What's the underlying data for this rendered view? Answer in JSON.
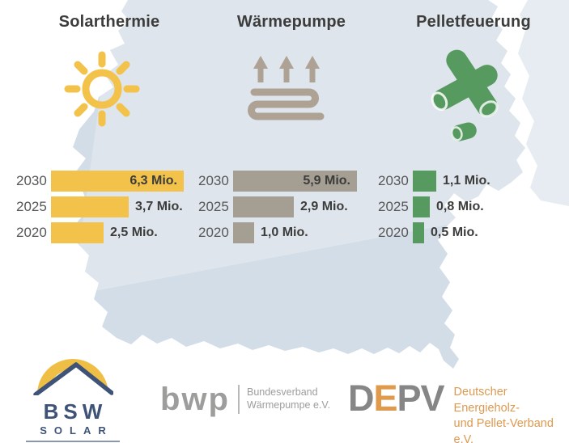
{
  "columns": [
    {
      "label": "Solarthermie",
      "icon": "sun-icon",
      "color": "#F2C24A"
    },
    {
      "label": "Wärmepumpe",
      "icon": "heatpump-icon",
      "color": "#A59E93"
    },
    {
      "label": "Pelletfeuerung",
      "icon": "pellets-icon",
      "color": "#579A60"
    }
  ],
  "chart_data": {
    "type": "bar",
    "orientation": "horizontal",
    "unit": "Mio.",
    "categories": [
      "2030",
      "2025",
      "2020"
    ],
    "series": [
      {
        "name": "Solarthermie",
        "color": "#F2C24A",
        "values": [
          6.3,
          3.7,
          2.5
        ],
        "labels": [
          "6,3 Mio.",
          "3,7 Mio.",
          "2,5 Mio."
        ],
        "label_placement": [
          "inside",
          "outside",
          "outside"
        ]
      },
      {
        "name": "Wärmepumpe",
        "color": "#A59E93",
        "values": [
          5.9,
          2.9,
          1.0
        ],
        "labels": [
          "5,9 Mio.",
          "2,9 Mio.",
          "1,0 Mio."
        ],
        "label_placement": [
          "inside",
          "outside",
          "outside"
        ]
      },
      {
        "name": "Pelletfeuerung",
        "color": "#579A60",
        "values": [
          1.1,
          0.8,
          0.5
        ],
        "labels": [
          "1,1 Mio.",
          "0,8 Mio.",
          "0,5 Mio."
        ],
        "label_placement": [
          "outside",
          "outside",
          "outside"
        ]
      }
    ],
    "xlim": [
      0,
      6.5
    ],
    "grid": false,
    "legend": false,
    "background": "germany-map-silhouette"
  },
  "logos": {
    "bsw": {
      "mark": "BSW",
      "sub": "SOLAR"
    },
    "bwp": {
      "mark": "bwp",
      "name_line1": "Bundesverband",
      "name_line2": "Wärmepumpe e.V."
    },
    "depv": {
      "letter1": "D",
      "letter2": "E",
      "letter3": "P",
      "letter4": "V",
      "name_line1": "Deutscher Energieholz-",
      "name_line2": "und Pellet-Verband e.V."
    }
  },
  "colors": {
    "bar_yellow": "#F2C24A",
    "bar_taupe": "#A59E93",
    "bar_green": "#579A60",
    "map_fill": "#D3DDE7",
    "map_fill_light": "#E6ECF1",
    "heading_text": "#3C3C3B",
    "year_text": "#575756",
    "bsw_blue": "#3E5377",
    "bsw_yellow": "#EFBE45",
    "bwp_gray": "#9D9D9C",
    "depv_gray": "#868686",
    "depv_orange": "#DD9950"
  }
}
